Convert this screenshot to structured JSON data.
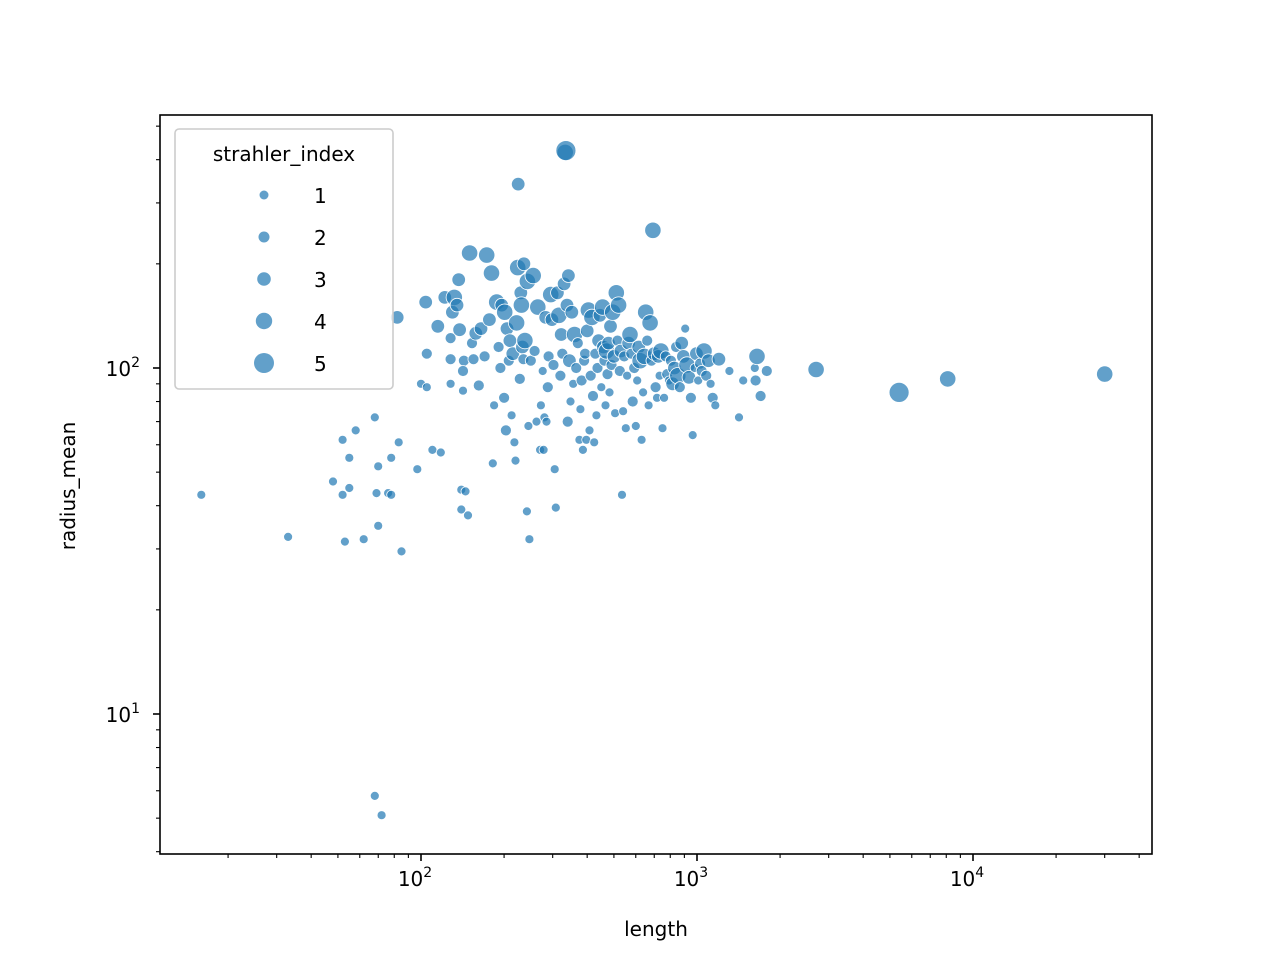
{
  "chart_data": {
    "type": "scatter",
    "title": "",
    "xlabel": "length",
    "ylabel": "radius_mean",
    "xscale": "log",
    "yscale": "log",
    "xlim": [
      11,
      43000
    ],
    "ylim": [
      4.2,
      520
    ],
    "grid": false,
    "x_ticks": [
      {
        "base": "10",
        "exp": "2",
        "value": 100
      },
      {
        "base": "10",
        "exp": "3",
        "value": 1000
      },
      {
        "base": "10",
        "exp": "4",
        "value": 10000
      }
    ],
    "y_ticks": [
      {
        "base": "10",
        "exp": "1",
        "value": 10
      },
      {
        "base": "10",
        "exp": "2",
        "value": 100
      }
    ],
    "legend": {
      "title": "strahler_index",
      "position": "upper left",
      "entries": [
        "1",
        "2",
        "3",
        "4",
        "5"
      ]
    },
    "color": "#1f77b4",
    "marker_radius_px": {
      "1": 4.5,
      "2": 5.5,
      "3": 6.8,
      "4": 8.2,
      "5": 10
    },
    "points": [
      [
        16,
        43,
        1
      ],
      [
        33,
        32.5,
        1
      ],
      [
        48,
        47,
        1
      ],
      [
        52,
        62,
        1
      ],
      [
        52,
        43,
        1
      ],
      [
        53,
        31.5,
        1
      ],
      [
        55,
        55,
        1
      ],
      [
        55,
        45,
        1
      ],
      [
        58,
        66,
        1
      ],
      [
        62,
        32,
        1
      ],
      [
        68,
        72,
        1
      ],
      [
        68,
        5.8,
        1
      ],
      [
        69,
        43.5,
        1
      ],
      [
        70,
        52,
        1
      ],
      [
        70,
        35,
        1
      ],
      [
        72,
        5.1,
        1
      ],
      [
        76,
        43.5,
        1
      ],
      [
        78,
        43,
        1
      ],
      [
        78,
        55,
        1
      ],
      [
        83,
        61,
        1
      ],
      [
        85,
        29.5,
        1
      ],
      [
        82,
        140,
        3
      ],
      [
        97,
        51,
        1
      ],
      [
        100,
        90,
        1
      ],
      [
        105,
        88,
        1
      ],
      [
        105,
        110,
        2
      ],
      [
        104,
        155,
        3
      ],
      [
        110,
        58,
        1
      ],
      [
        118,
        57,
        1
      ],
      [
        115,
        132,
        3
      ],
      [
        122,
        160,
        3
      ],
      [
        128,
        90,
        1
      ],
      [
        128,
        106,
        2
      ],
      [
        128,
        122,
        2
      ],
      [
        130,
        145,
        3
      ],
      [
        132,
        160,
        4
      ],
      [
        135,
        152,
        3
      ],
      [
        137,
        180,
        3
      ],
      [
        138,
        129,
        3
      ],
      [
        140,
        44.5,
        1
      ],
      [
        140,
        39,
        1
      ],
      [
        142,
        86,
        1
      ],
      [
        143,
        105,
        2
      ],
      [
        142,
        98,
        2
      ],
      [
        145,
        44,
        1
      ],
      [
        148,
        37.5,
        1
      ],
      [
        150,
        215,
        4
      ],
      [
        153,
        118,
        2
      ],
      [
        155,
        106,
        2
      ],
      [
        158,
        126,
        3
      ],
      [
        162,
        89,
        2
      ],
      [
        165,
        130,
        3
      ],
      [
        170,
        108,
        2
      ],
      [
        173,
        212,
        4
      ],
      [
        177,
        138,
        3
      ],
      [
        180,
        188,
        4
      ],
      [
        182,
        53,
        1
      ],
      [
        184,
        78,
        1
      ],
      [
        188,
        155,
        4
      ],
      [
        191,
        115,
        2
      ],
      [
        194,
        100,
        2
      ],
      [
        196,
        152,
        3
      ],
      [
        200,
        82,
        2
      ],
      [
        201,
        145,
        4
      ],
      [
        203,
        66,
        2
      ],
      [
        205,
        130,
        3
      ],
      [
        208,
        105,
        2
      ],
      [
        210,
        120,
        3
      ],
      [
        213,
        73,
        1
      ],
      [
        215,
        110,
        3
      ],
      [
        218,
        61,
        1
      ],
      [
        220,
        54,
        1
      ],
      [
        222,
        135,
        4
      ],
      [
        224,
        195,
        4
      ],
      [
        225,
        340,
        3
      ],
      [
        228,
        93,
        2
      ],
      [
        230,
        165,
        3
      ],
      [
        231,
        152,
        4
      ],
      [
        233,
        115,
        3
      ],
      [
        235,
        106,
        2
      ],
      [
        236,
        200,
        3
      ],
      [
        238,
        120,
        4
      ],
      [
        242,
        38.5,
        1
      ],
      [
        243,
        178,
        4
      ],
      [
        245,
        68,
        1
      ],
      [
        247,
        32,
        1
      ],
      [
        250,
        105,
        2
      ],
      [
        255,
        185,
        4
      ],
      [
        258,
        112,
        2
      ],
      [
        262,
        70,
        1
      ],
      [
        265,
        150,
        4
      ],
      [
        270,
        58,
        1
      ],
      [
        272,
        78,
        1
      ],
      [
        276,
        98,
        1
      ],
      [
        278,
        58,
        1
      ],
      [
        280,
        72,
        1
      ],
      [
        283,
        140,
        3
      ],
      [
        285,
        70,
        1
      ],
      [
        288,
        88,
        2
      ],
      [
        290,
        108,
        2
      ],
      [
        295,
        163,
        4
      ],
      [
        298,
        138,
        3
      ],
      [
        302,
        102,
        2
      ],
      [
        305,
        51,
        1
      ],
      [
        308,
        39.5,
        1
      ],
      [
        312,
        165,
        3
      ],
      [
        316,
        142,
        4
      ],
      [
        320,
        95,
        2
      ],
      [
        322,
        125,
        3
      ],
      [
        325,
        110,
        2
      ],
      [
        330,
        175,
        3
      ],
      [
        333,
        420,
        4
      ],
      [
        335,
        425,
        5
      ],
      [
        338,
        152,
        3
      ],
      [
        340,
        70,
        2
      ],
      [
        342,
        185,
        3
      ],
      [
        345,
        105,
        3
      ],
      [
        348,
        80,
        1
      ],
      [
        352,
        145,
        3
      ],
      [
        356,
        90,
        1
      ],
      [
        360,
        125,
        4
      ],
      [
        365,
        100,
        2
      ],
      [
        370,
        118,
        2
      ],
      [
        375,
        62,
        1
      ],
      [
        378,
        76,
        1
      ],
      [
        382,
        92,
        2
      ],
      [
        386,
        58,
        1
      ],
      [
        390,
        105,
        2
      ],
      [
        393,
        110,
        2
      ],
      [
        397,
        62,
        1
      ],
      [
        400,
        128,
        3
      ],
      [
        404,
        147,
        4
      ],
      [
        408,
        66,
        1
      ],
      [
        412,
        95,
        2
      ],
      [
        416,
        140,
        4
      ],
      [
        420,
        83,
        2
      ],
      [
        424,
        61,
        1
      ],
      [
        428,
        110,
        2
      ],
      [
        432,
        73,
        1
      ],
      [
        436,
        100,
        2
      ],
      [
        440,
        120,
        3
      ],
      [
        445,
        142,
        3
      ],
      [
        450,
        88,
        1
      ],
      [
        455,
        150,
        4
      ],
      [
        458,
        115,
        3
      ],
      [
        462,
        105,
        2
      ],
      [
        466,
        78,
        1
      ],
      [
        470,
        112,
        4
      ],
      [
        474,
        96,
        2
      ],
      [
        478,
        118,
        3
      ],
      [
        482,
        85,
        1
      ],
      [
        486,
        132,
        3
      ],
      [
        490,
        102,
        2
      ],
      [
        495,
        145,
        4
      ],
      [
        500,
        108,
        3
      ],
      [
        505,
        74,
        1
      ],
      [
        510,
        165,
        4
      ],
      [
        515,
        120,
        2
      ],
      [
        520,
        152,
        4
      ],
      [
        525,
        98,
        2
      ],
      [
        530,
        112,
        3
      ],
      [
        535,
        43,
        1
      ],
      [
        540,
        75,
        1
      ],
      [
        545,
        108,
        2
      ],
      [
        552,
        67,
        1
      ],
      [
        558,
        95,
        1
      ],
      [
        565,
        118,
        3
      ],
      [
        572,
        125,
        4
      ],
      [
        578,
        110,
        2
      ],
      [
        585,
        80,
        2
      ],
      [
        592,
        100,
        2
      ],
      [
        600,
        68,
        1
      ],
      [
        607,
        92,
        1
      ],
      [
        615,
        115,
        3
      ],
      [
        622,
        105,
        4
      ],
      [
        630,
        62,
        1
      ],
      [
        638,
        85,
        1
      ],
      [
        645,
        108,
        4
      ],
      [
        652,
        145,
        4
      ],
      [
        660,
        120,
        2
      ],
      [
        668,
        78,
        1
      ],
      [
        676,
        135,
        4
      ],
      [
        684,
        105,
        2
      ],
      [
        692,
        250,
        4
      ],
      [
        700,
        110,
        3
      ],
      [
        708,
        88,
        2
      ],
      [
        716,
        82,
        1
      ],
      [
        724,
        108,
        3
      ],
      [
        732,
        95,
        1
      ],
      [
        740,
        112,
        4
      ],
      [
        750,
        67,
        1
      ],
      [
        760,
        82,
        1
      ],
      [
        770,
        108,
        2
      ],
      [
        780,
        96,
        2
      ],
      [
        792,
        92,
        1
      ],
      [
        804,
        105,
        2
      ],
      [
        816,
        90,
        3
      ],
      [
        828,
        100,
        3
      ],
      [
        840,
        115,
        2
      ],
      [
        852,
        95,
        4
      ],
      [
        866,
        88,
        2
      ],
      [
        880,
        118,
        3
      ],
      [
        893,
        108,
        3
      ],
      [
        906,
        130,
        1
      ],
      [
        920,
        102,
        4
      ],
      [
        935,
        94,
        3
      ],
      [
        950,
        82,
        2
      ],
      [
        965,
        64,
        1
      ],
      [
        980,
        100,
        1
      ],
      [
        995,
        110,
        3
      ],
      [
        1010,
        92,
        1
      ],
      [
        1025,
        103,
        2
      ],
      [
        1040,
        98,
        2
      ],
      [
        1060,
        112,
        4
      ],
      [
        1080,
        95,
        2
      ],
      [
        1100,
        105,
        3
      ],
      [
        1120,
        90,
        1
      ],
      [
        1140,
        82,
        2
      ],
      [
        1165,
        78,
        1
      ],
      [
        1200,
        106,
        3
      ],
      [
        1310,
        98,
        1
      ],
      [
        1420,
        72,
        1
      ],
      [
        1470,
        92,
        1
      ],
      [
        1620,
        100,
        1
      ],
      [
        1630,
        92,
        2
      ],
      [
        1650,
        108,
        4
      ],
      [
        1700,
        83,
        2
      ],
      [
        1790,
        98,
        2
      ],
      [
        2700,
        99,
        4
      ],
      [
        5400,
        85,
        5
      ],
      [
        8100,
        93,
        4
      ],
      [
        30000,
        96,
        4
      ]
    ]
  }
}
